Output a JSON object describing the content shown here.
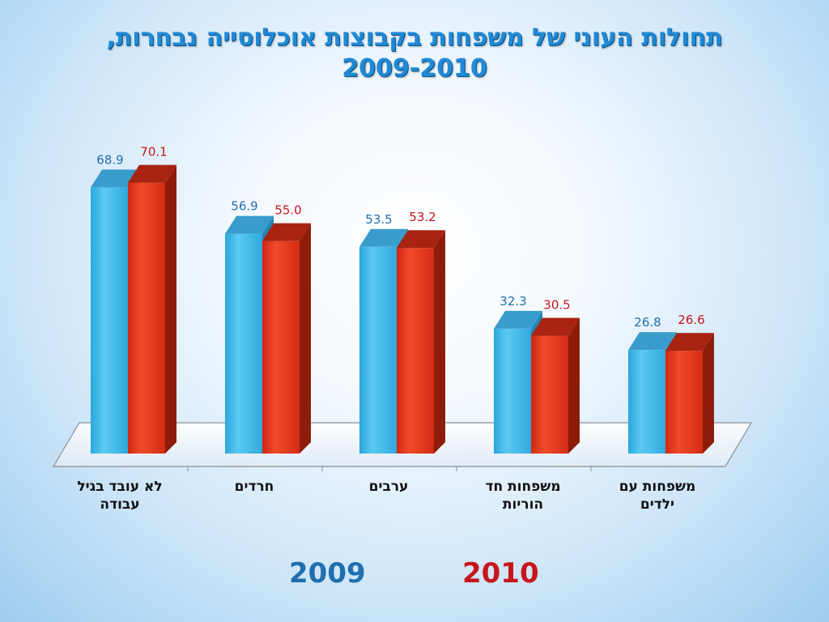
{
  "title": {
    "line1": "תחולות העוני של משפחות בקבוצות אוכלוסייה נבחרות,",
    "line2": "2009-2010"
  },
  "colors": {
    "series_2009": "#3fb8e8",
    "series_2010": "#e0321a",
    "label_2009": "#1f6fb0",
    "label_2010": "#c8161b",
    "title": "#1f8ad6"
  },
  "chart_data": {
    "type": "bar",
    "categories": [
      [
        "לא עובד בגיל",
        "עבודה"
      ],
      [
        "חרדים"
      ],
      [
        "ערבים"
      ],
      [
        "משפחות חד",
        "הוריות"
      ],
      [
        "משפחות עם",
        "ילדים"
      ]
    ],
    "series": [
      {
        "name": "2009",
        "values": [
          68.9,
          56.9,
          53.5,
          32.3,
          26.8
        ]
      },
      {
        "name": "2010",
        "values": [
          70.1,
          55.0,
          53.2,
          30.5,
          26.6
        ]
      }
    ],
    "value_labels": {
      "2009": [
        "68.9",
        "56.9",
        "53.5",
        "32.3",
        "26.8"
      ],
      "2010": [
        "70.1",
        "55.0",
        "53.2",
        "30.5",
        "26.6"
      ]
    },
    "ylim": [
      0,
      75
    ],
    "grid": false,
    "legend": "bottom"
  },
  "legend": {
    "label_2009": "2009",
    "label_2010": "2010"
  }
}
